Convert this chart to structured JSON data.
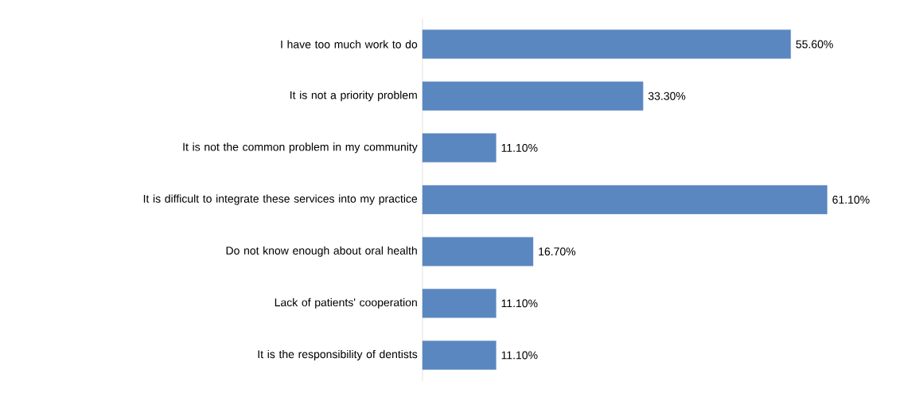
{
  "chart_data": {
    "type": "bar",
    "orientation": "horizontal",
    "categories": [
      "I have too much work to do",
      "It is not a priority problem",
      "It is not the common problem in my community",
      "It is difficult to integrate these services into my practice",
      "Do not know enough about oral health",
      "Lack of patients' cooperation",
      "It is the responsibility of dentists"
    ],
    "values": [
      55.6,
      33.3,
      11.1,
      61.1,
      16.7,
      11.1,
      11.1
    ],
    "value_labels": [
      "55.60%",
      "33.30%",
      "11.10%",
      "61.10%",
      "16.70%",
      "11.10%",
      "11.10%"
    ],
    "color": "#5b87c0"
  }
}
